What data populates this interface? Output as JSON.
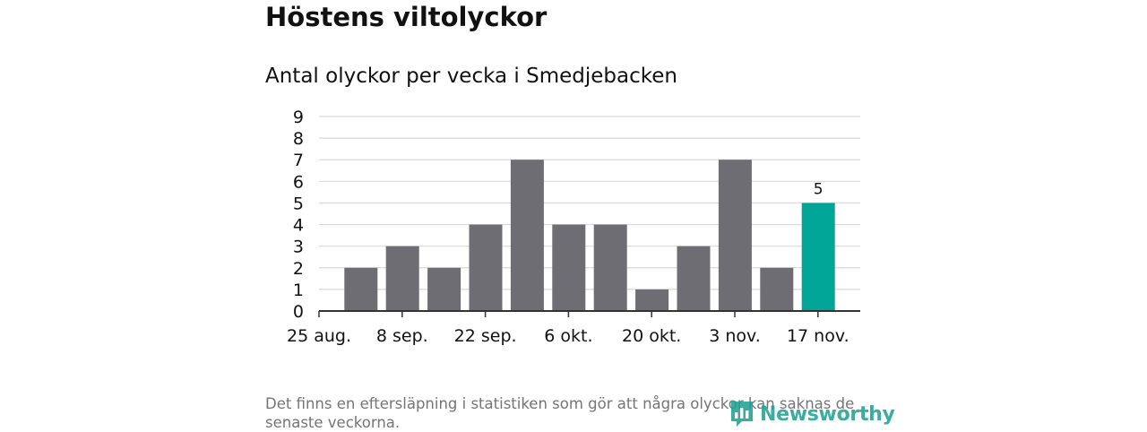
{
  "title": "Höstens viltolyckor",
  "subtitle": "Antal olyckor per vecka i Smedjebacken",
  "note": "Det finns en eftersläpning i statistiken som gör att några olyckor kan saknas de senaste veckorna.",
  "brand": {
    "name": "Newsworthy",
    "icon": "newsworthy-logo-icon",
    "color": "#21a196"
  },
  "colors": {
    "bar": "#6e6d73",
    "highlight": "#00a598",
    "grid": "#d9d9d9",
    "axis": "#333333"
  },
  "chart_data": {
    "type": "bar",
    "title": "Antal olyckor per vecka i Smedjebacken",
    "xlabel": "",
    "ylabel": "",
    "values": [
      2,
      3,
      2,
      4,
      7,
      4,
      4,
      1,
      3,
      7,
      2,
      5
    ],
    "x_tick_labels": [
      "25 aug.",
      "8 sep.",
      "22 sep.",
      "6 okt.",
      "20 okt.",
      "3 nov.",
      "17 nov."
    ],
    "y_ticks": [
      "0",
      "1",
      "2",
      "3",
      "4",
      "5",
      "6",
      "7",
      "8",
      "9"
    ],
    "ylim": [
      0,
      9
    ],
    "grid": true,
    "highlight_index": 11,
    "data_label": "5"
  }
}
